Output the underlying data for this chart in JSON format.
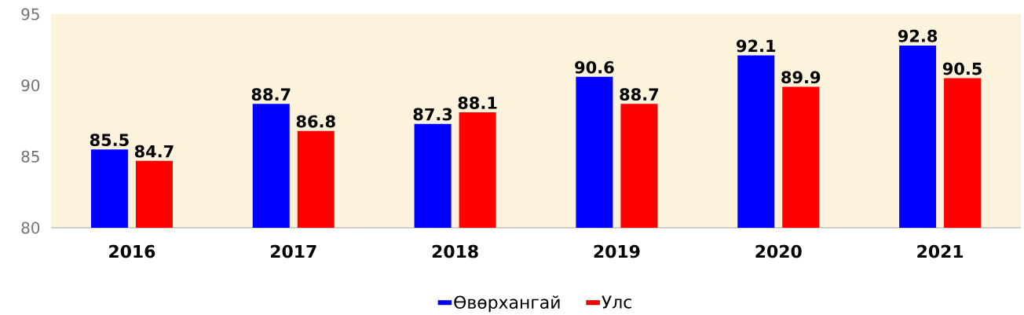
{
  "chart_data": {
    "type": "bar",
    "categories": [
      "2016",
      "2017",
      "2018",
      "2019",
      "2020",
      "2021"
    ],
    "series": [
      {
        "name": "Өвөрхангай",
        "color": "#0000ff",
        "values": [
          85.5,
          88.7,
          87.3,
          90.6,
          92.1,
          92.8
        ]
      },
      {
        "name": "Улс",
        "color": "#ff0000",
        "values": [
          84.7,
          86.8,
          88.1,
          88.7,
          89.9,
          90.5
        ]
      }
    ],
    "ylim": [
      80,
      95
    ],
    "yticks": [
      80,
      85,
      90,
      95
    ],
    "data_labels": true,
    "legend": "bottom",
    "grid": false
  }
}
